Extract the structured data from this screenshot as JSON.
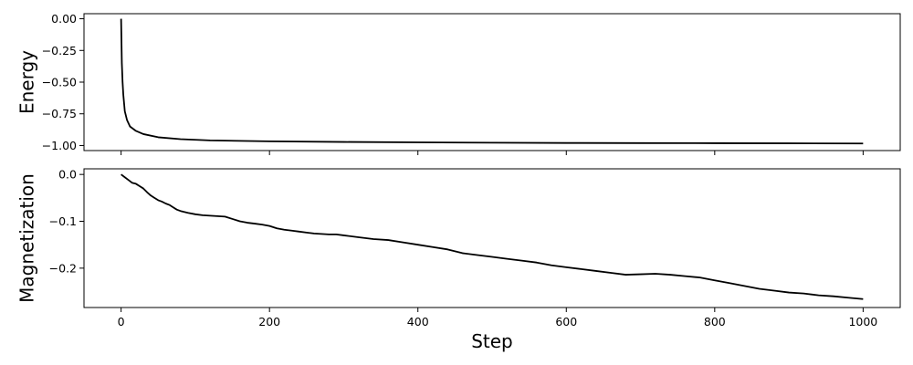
{
  "chart_data": [
    {
      "type": "line",
      "ylabel": "Energy",
      "xlim": [
        -50,
        1050
      ],
      "ylim": [
        -1.04,
        0.04
      ],
      "xticks": [
        0,
        200,
        400,
        600,
        800,
        1000
      ],
      "yticks": [
        0.0,
        -0.25,
        -0.5,
        -0.75,
        -1.0
      ],
      "ytick_labels": [
        "0.00",
        "−0.25",
        "−0.50",
        "−0.75",
        "−1.00"
      ],
      "show_xtick_labels": false,
      "grid": false,
      "series": [
        {
          "color": "#000000",
          "points": [
            [
              0,
              0.0
            ],
            [
              1,
              -0.35
            ],
            [
              2,
              -0.5
            ],
            [
              3,
              -0.6
            ],
            [
              5,
              -0.73
            ],
            [
              8,
              -0.8
            ],
            [
              12,
              -0.85
            ],
            [
              20,
              -0.885
            ],
            [
              30,
              -0.91
            ],
            [
              50,
              -0.935
            ],
            [
              80,
              -0.95
            ],
            [
              120,
              -0.96
            ],
            [
              200,
              -0.967
            ],
            [
              300,
              -0.972
            ],
            [
              400,
              -0.975
            ],
            [
              500,
              -0.978
            ],
            [
              600,
              -0.98
            ],
            [
              700,
              -0.981
            ],
            [
              800,
              -0.982
            ],
            [
              900,
              -0.983
            ],
            [
              1000,
              -0.984
            ]
          ]
        }
      ]
    },
    {
      "type": "line",
      "ylabel": "Magnetization",
      "xlabel": "Step",
      "xlim": [
        -50,
        1050
      ],
      "ylim": [
        -0.284,
        0.012
      ],
      "xticks": [
        0,
        200,
        400,
        600,
        800,
        1000
      ],
      "xtick_labels": [
        "0",
        "200",
        "400",
        "600",
        "800",
        "1000"
      ],
      "yticks": [
        0.0,
        -0.1,
        -0.2
      ],
      "ytick_labels": [
        "0.0",
        "−0.1",
        "−0.2"
      ],
      "grid": false,
      "series": [
        {
          "color": "#000000",
          "points": [
            [
              0,
              0.0
            ],
            [
              5,
              -0.006
            ],
            [
              10,
              -0.012
            ],
            [
              15,
              -0.018
            ],
            [
              20,
              -0.02
            ],
            [
              25,
              -0.025
            ],
            [
              30,
              -0.03
            ],
            [
              35,
              -0.038
            ],
            [
              40,
              -0.045
            ],
            [
              45,
              -0.05
            ],
            [
              50,
              -0.055
            ],
            [
              55,
              -0.058
            ],
            [
              60,
              -0.062
            ],
            [
              65,
              -0.065
            ],
            [
              70,
              -0.07
            ],
            [
              75,
              -0.075
            ],
            [
              80,
              -0.078
            ],
            [
              85,
              -0.08
            ],
            [
              90,
              -0.082
            ],
            [
              100,
              -0.085
            ],
            [
              110,
              -0.087
            ],
            [
              120,
              -0.088
            ],
            [
              130,
              -0.089
            ],
            [
              140,
              -0.09
            ],
            [
              150,
              -0.095
            ],
            [
              160,
              -0.1
            ],
            [
              170,
              -0.103
            ],
            [
              180,
              -0.105
            ],
            [
              190,
              -0.107
            ],
            [
              200,
              -0.11
            ],
            [
              210,
              -0.115
            ],
            [
              220,
              -0.118
            ],
            [
              230,
              -0.12
            ],
            [
              240,
              -0.122
            ],
            [
              250,
              -0.124
            ],
            [
              260,
              -0.126
            ],
            [
              270,
              -0.127
            ],
            [
              280,
              -0.128
            ],
            [
              290,
              -0.128
            ],
            [
              300,
              -0.13
            ],
            [
              320,
              -0.134
            ],
            [
              340,
              -0.138
            ],
            [
              360,
              -0.14
            ],
            [
              380,
              -0.145
            ],
            [
              400,
              -0.15
            ],
            [
              420,
              -0.155
            ],
            [
              440,
              -0.16
            ],
            [
              460,
              -0.168
            ],
            [
              480,
              -0.172
            ],
            [
              500,
              -0.176
            ],
            [
              520,
              -0.18
            ],
            [
              540,
              -0.184
            ],
            [
              560,
              -0.188
            ],
            [
              580,
              -0.194
            ],
            [
              600,
              -0.198
            ],
            [
              620,
              -0.202
            ],
            [
              640,
              -0.206
            ],
            [
              660,
              -0.21
            ],
            [
              680,
              -0.214
            ],
            [
              700,
              -0.213
            ],
            [
              720,
              -0.212
            ],
            [
              740,
              -0.214
            ],
            [
              760,
              -0.217
            ],
            [
              780,
              -0.22
            ],
            [
              800,
              -0.226
            ],
            [
              820,
              -0.232
            ],
            [
              840,
              -0.238
            ],
            [
              860,
              -0.244
            ],
            [
              880,
              -0.248
            ],
            [
              900,
              -0.252
            ],
            [
              920,
              -0.254
            ],
            [
              940,
              -0.258
            ],
            [
              960,
              -0.26
            ],
            [
              980,
              -0.263
            ],
            [
              1000,
              -0.266
            ]
          ]
        }
      ]
    }
  ]
}
